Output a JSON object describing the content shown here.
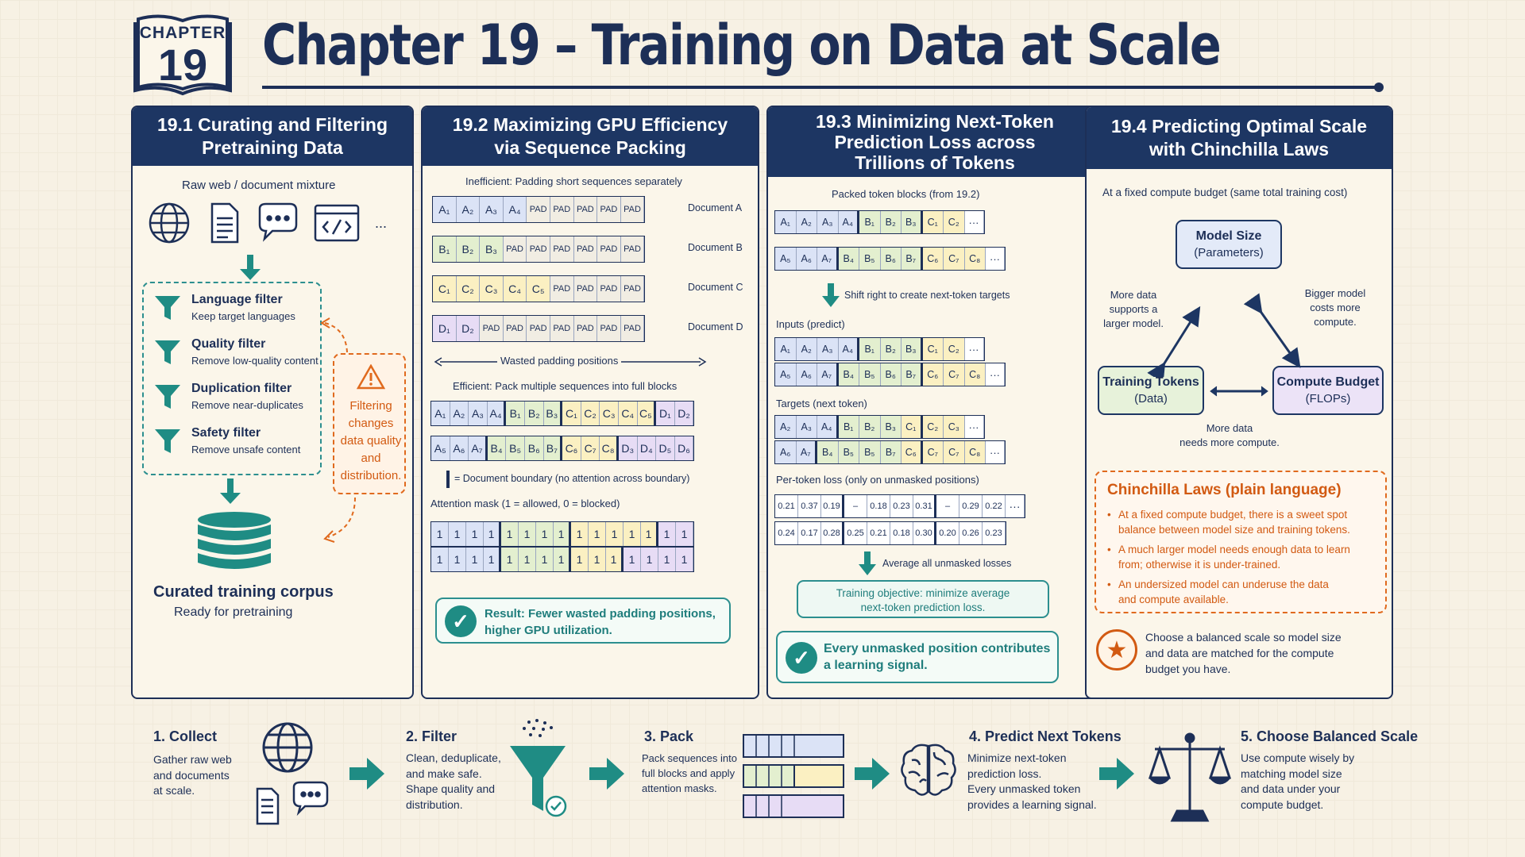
{
  "header": {
    "chapter_label": "CHAPTER",
    "chapter_number": "19",
    "title": "Chapter 19 – Training on Data at Scale"
  },
  "panel1": {
    "heading": "19.1  Curating and Filtering\nPretraining Data",
    "raw_label": "Raw web / document mixture",
    "ellipsis": "...",
    "filters": [
      {
        "title": "Language filter",
        "desc": "Keep target languages"
      },
      {
        "title": "Quality filter",
        "desc": "Remove low-quality content"
      },
      {
        "title": "Duplication filter",
        "desc": "Remove near-duplicates"
      },
      {
        "title": "Safety filter",
        "desc": "Remove unsafe content"
      }
    ],
    "note": "Filtering\nchanges\ndata quality\nand\ndistribution.",
    "corpus_title": "Curated training corpus",
    "corpus_sub": "Ready for pretraining"
  },
  "panel2": {
    "heading": "19.2  Maximizing GPU Efficiency\nvia Sequence Packing",
    "inefficient_label": "Inefficient: Padding short sequences separately",
    "pad_token": "PAD",
    "documents": [
      "Document A",
      "Document B",
      "Document C",
      "Document D"
    ],
    "wasted_label": "Wasted padding positions",
    "efficient_label": "Efficient: Pack multiple sequences into full blocks",
    "boundary_legend": "= Document boundary (no attention across boundary)",
    "mask_label": "Attention mask (1 = allowed, 0 = blocked)",
    "mask_value": "1",
    "result": "Result: Fewer wasted padding positions,\nhigher GPU utilization."
  },
  "panel3": {
    "heading": "19.3  Minimizing Next-Token\nPrediction Loss across\nTrillions of Tokens",
    "packed_label": "Packed token blocks (from 19.2)",
    "shift_label": "Shift right to create next-token targets",
    "inputs_label": "Inputs (predict)",
    "targets_label": "Targets (next token)",
    "loss_label": "Per-token loss (only on unmasked positions)",
    "loss_row1": [
      "0.21",
      "0.37",
      "0.19",
      "–",
      "0.18",
      "0.23",
      "0.31",
      "–",
      "0.29",
      "0.22"
    ],
    "loss_row2": [
      "0.24",
      "0.17",
      "0.28",
      "0.25",
      "0.21",
      "0.18",
      "0.30",
      "0.20",
      "0.26",
      "0.23"
    ],
    "average_label": "Average all unmasked losses",
    "objective": "Training objective: minimize average\nnext-token prediction loss.",
    "signal": "Every unmasked position contributes\na learning signal.",
    "ellipsis": "···"
  },
  "panel4": {
    "heading": "19.4  Predicting Optimal Scale\nwith Chinchilla Laws",
    "budget_label": "At a fixed compute budget (same total training cost)",
    "node_model": "Model Size",
    "node_model_sub": "(Parameters)",
    "node_tokens": "Training Tokens",
    "node_tokens_sub": "(Data)",
    "node_compute": "Compute Budget",
    "node_compute_sub": "(FLOPs)",
    "edge_left": "More data\nsupports a\nlarger model.",
    "edge_right": "Bigger model\ncosts more\ncompute.",
    "edge_bottom": "More data\nneeds more compute.",
    "laws_title": "Chinchilla Laws (plain language)",
    "laws": [
      "At a fixed compute budget, there is a sweet spot\nbalance between model size and training tokens.",
      "A much larger model needs enough data to learn\nfrom; otherwise it is under-trained.",
      "An undersized model can underuse the data\nand compute available."
    ],
    "conclusion": "Choose a balanced scale so model size\nand data are matched for the compute\nbudget you have."
  },
  "flow": [
    {
      "title": "1. Collect",
      "text": "Gather raw web\nand documents\nat scale."
    },
    {
      "title": "2. Filter",
      "text": "Clean, deduplicate,\nand make safe.\nShape quality and\ndistribution."
    },
    {
      "title": "3. Pack",
      "text": "Pack sequences into\nfull blocks and apply\nattention masks."
    },
    {
      "title": "4. Predict Next Tokens",
      "text": "Minimize next-token\nprediction loss.\nEvery unmasked token\nprovides a learning signal."
    },
    {
      "title": "5. Choose Balanced Scale",
      "text": "Use compute wisely by\nmatching model size\nand data under your\ncompute budget."
    }
  ],
  "colors": {
    "navy": "#1d3663",
    "teal": "#1f8c84",
    "orange": "#d25a12"
  }
}
